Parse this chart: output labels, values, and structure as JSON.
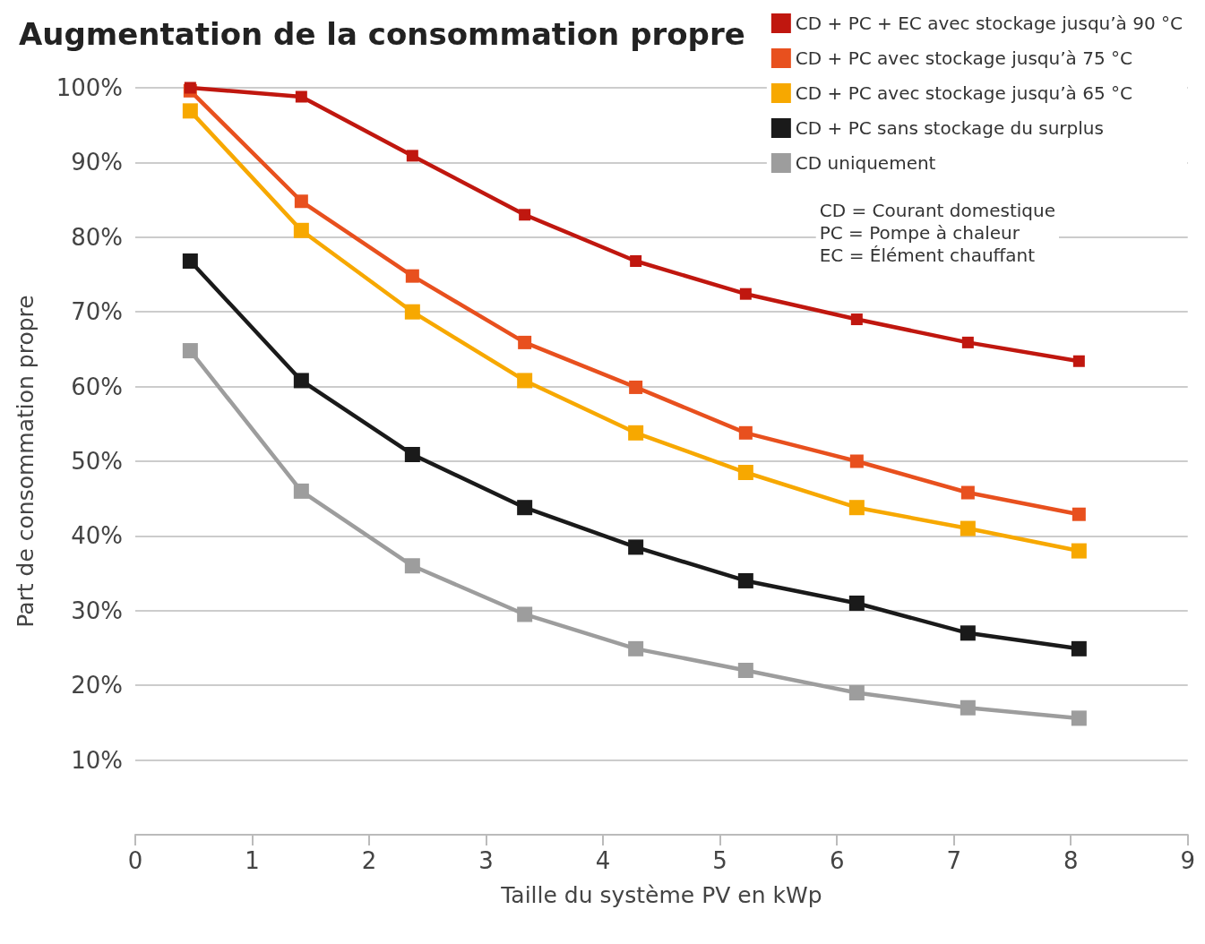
{
  "chart_data": {
    "type": "line",
    "title": "Augmentation de la consommation propre",
    "xlabel": "Taille du système PV en kWp",
    "ylabel": "Part de consommation propre",
    "annotations": [
      "CD = Courant domestique\nPC = Pompe à chaleur\nEC = Élément chauffant"
    ],
    "x": [
      0.47,
      1.42,
      2.37,
      3.33,
      4.28,
      5.22,
      6.17,
      7.12,
      8.07
    ],
    "series": [
      {
        "name": "CD + PC + EC avec stockage jusqu’à 90 °C",
        "color": "#c0170f",
        "values": [
          100,
          98.8,
          90.9,
          83.0,
          76.8,
          72.4,
          69.0,
          65.9,
          63.4
        ]
      },
      {
        "name": "CD + PC avec stockage jusqu’à 75 °C",
        "color": "#e8501e",
        "values": [
          99.6,
          84.8,
          74.8,
          65.9,
          59.9,
          53.8,
          50.0,
          45.8,
          42.9
        ]
      },
      {
        "name": "CD + PC avec stockage jusqu’à 65 °C",
        "color": "#f7a800",
        "values": [
          96.9,
          80.9,
          70.0,
          60.8,
          53.8,
          48.5,
          43.8,
          41.0,
          38.0
        ]
      },
      {
        "name": "CD + PC sans stockage du surplus",
        "color": "#1a1a1a",
        "values": [
          76.8,
          60.8,
          50.9,
          43.8,
          38.5,
          34.0,
          31.0,
          27.0,
          24.9
        ]
      },
      {
        "name": "CD uniquement",
        "color": "#9d9d9d",
        "values": [
          64.8,
          46.0,
          36.0,
          29.5,
          24.9,
          22.0,
          19.0,
          17.0,
          15.6
        ]
      }
    ],
    "xlim": [
      0,
      9
    ],
    "xticks": [
      0,
      1,
      2,
      3,
      4,
      5,
      6,
      7,
      8,
      9
    ],
    "ylim": [
      0,
      100
    ],
    "yticks": [
      {
        "value": 10,
        "label": "10%"
      },
      {
        "value": 20,
        "label": "20%"
      },
      {
        "value": 30,
        "label": "30%"
      },
      {
        "value": 40,
        "label": "40%"
      },
      {
        "value": 50,
        "label": "50%"
      },
      {
        "value": 60,
        "label": "60%"
      },
      {
        "value": 70,
        "label": "70%"
      },
      {
        "value": 80,
        "label": "80%"
      },
      {
        "value": 90,
        "label": "90%"
      },
      {
        "value": 100,
        "label": "100%"
      }
    ],
    "grid": "y",
    "legend": "top right",
    "marker": "square",
    "line_style": "solid"
  }
}
